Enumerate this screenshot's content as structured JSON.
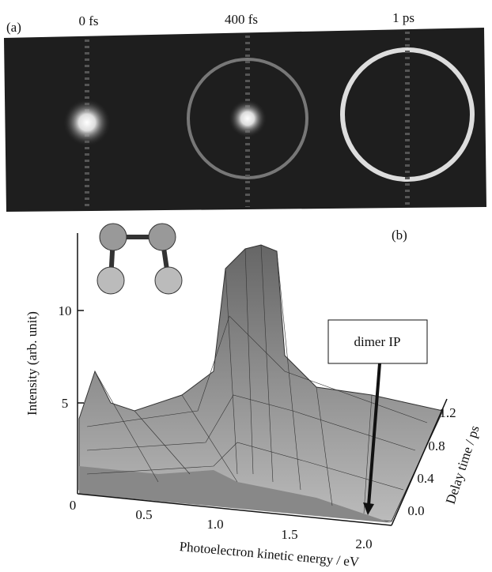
{
  "panel_a": {
    "label": "(a)",
    "frames": [
      "0 fs",
      "400 fs",
      "1 ps"
    ]
  },
  "panel_b": {
    "label": "(b)",
    "z_axis_label": "Intensity (arb. unit)",
    "z_ticks": [
      "5",
      "10"
    ],
    "x_axis_label": "Photoelectron kinetic energy / eV",
    "x_ticks": [
      "0",
      "0.5",
      "1.0",
      "1.5",
      "2.0"
    ],
    "y_axis_label": "Delay time / ps",
    "y_ticks": [
      "0.0",
      "0.4",
      "0.8",
      "1.2"
    ],
    "annotation": "dimer IP"
  }
}
